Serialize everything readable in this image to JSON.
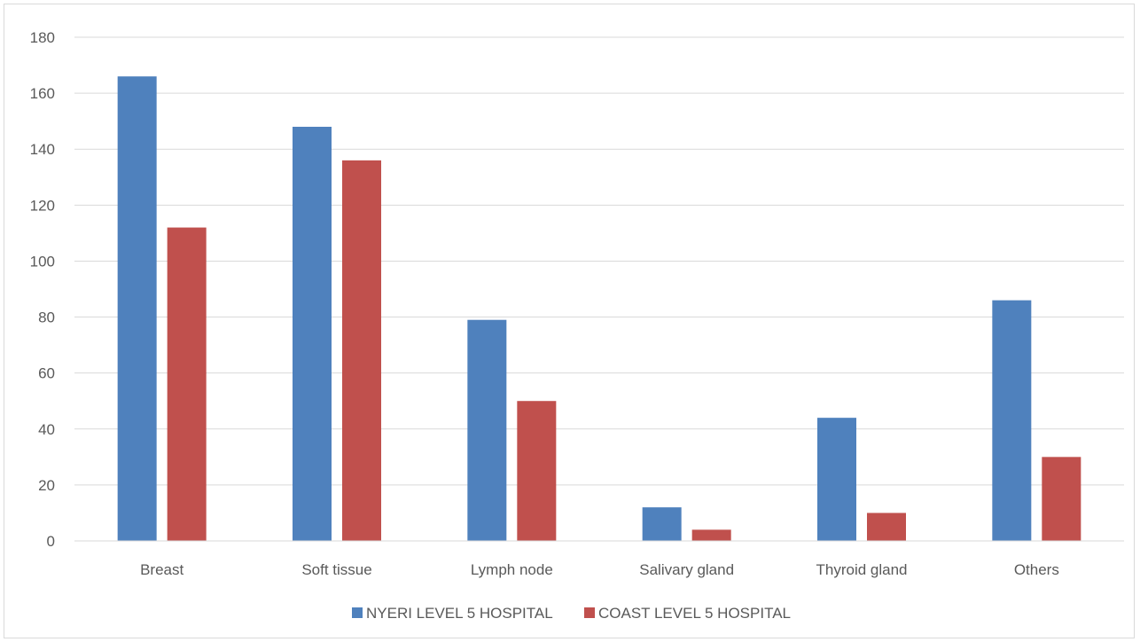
{
  "chart_data": {
    "type": "bar",
    "title": "",
    "xlabel": "",
    "ylabel": "",
    "categories": [
      "Breast",
      "Soft tissue",
      "Lymph node",
      "Salivary gland",
      "Thyroid gland",
      "Others"
    ],
    "series": [
      {
        "name": "NYERI LEVEL 5 HOSPITAL",
        "color": "#4f81bd",
        "values": [
          166,
          148,
          79,
          12,
          44,
          86
        ]
      },
      {
        "name": "COAST LEVEL 5 HOSPITAL",
        "color": "#c0504d",
        "values": [
          112,
          136,
          50,
          4,
          10,
          30
        ]
      }
    ],
    "ylim": [
      0,
      180
    ],
    "yticks": [
      "0",
      "20",
      "40",
      "60",
      "80",
      "100",
      "120",
      "140",
      "160",
      "180"
    ],
    "grid": true,
    "legend_position": "bottom"
  }
}
